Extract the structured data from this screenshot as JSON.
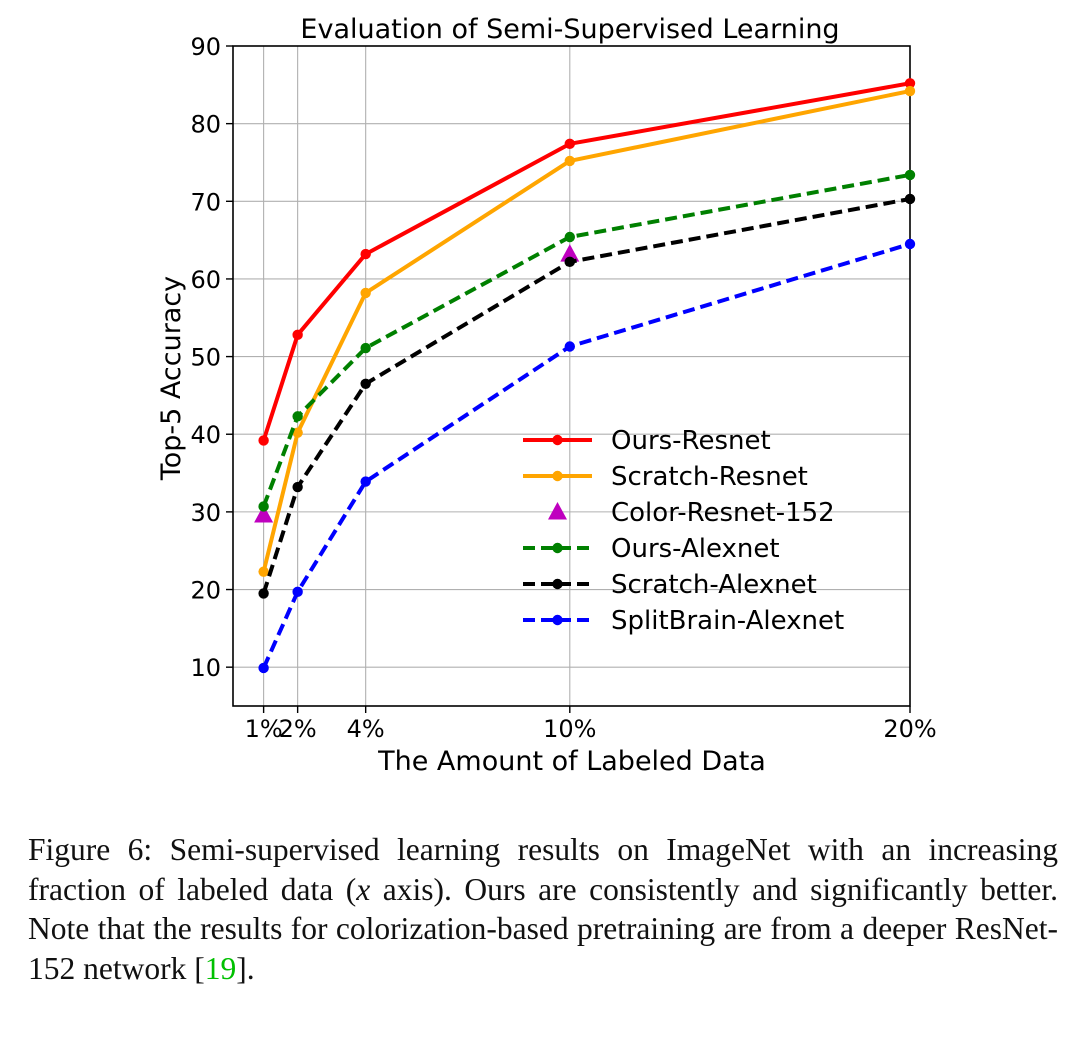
{
  "chart_data": {
    "type": "line",
    "title": "Evaluation of Semi-Supervised Learning",
    "xlabel": "The Amount of Labeled Data",
    "ylabel": "Top-5 Accuracy",
    "x": [
      1,
      2,
      4,
      10,
      20
    ],
    "x_tick_labels": [
      "1%",
      "2%",
      "4%",
      "10%",
      "20%"
    ],
    "xlim": [
      0.1,
      20
    ],
    "ylim": [
      5,
      90
    ],
    "y_ticks": [
      10,
      20,
      30,
      40,
      50,
      60,
      70,
      80,
      90
    ],
    "grid": true,
    "legend_position": "lower-right",
    "series": [
      {
        "name": "Ours-Resnet",
        "color": "#ff0000",
        "style": "solid",
        "marker": "circle",
        "x": [
          1,
          2,
          4,
          10,
          20
        ],
        "values": [
          39.2,
          52.8,
          63.2,
          77.4,
          85.2
        ]
      },
      {
        "name": "Scratch-Resnet",
        "color": "#ffa500",
        "style": "solid",
        "marker": "circle",
        "x": [
          1,
          2,
          4,
          10,
          20
        ],
        "values": [
          22.3,
          40.2,
          58.2,
          75.2,
          84.2
        ]
      },
      {
        "name": "Color-Resnet-152",
        "color": "#bf00bf",
        "style": "none",
        "marker": "triangle",
        "x": [
          1,
          10
        ],
        "values": [
          29.6,
          63.2
        ]
      },
      {
        "name": "Ours-Alexnet",
        "color": "#008000",
        "style": "dashed",
        "marker": "circle",
        "x": [
          1,
          2,
          4,
          10,
          20
        ],
        "values": [
          30.7,
          42.3,
          51.1,
          65.4,
          73.4
        ]
      },
      {
        "name": "Scratch-Alexnet",
        "color": "#000000",
        "style": "dashed",
        "marker": "circle",
        "x": [
          1,
          2,
          4,
          10,
          20
        ],
        "values": [
          19.5,
          33.2,
          46.5,
          62.2,
          70.3
        ]
      },
      {
        "name": "SplitBrain-Alexnet",
        "color": "#0000ff",
        "style": "dashed",
        "marker": "circle",
        "x": [
          1,
          2,
          4,
          10,
          20
        ],
        "values": [
          9.9,
          19.7,
          33.9,
          51.3,
          64.5
        ]
      }
    ]
  },
  "caption": {
    "before_ref": "Figure 6: Semi-supervised learning results on ImageNet with an increasing fraction of labeled data (",
    "math": "x",
    "middle": " axis). Ours are consistently and significantly better. Note that the results for colorization-based pretraining are from a deeper ResNet-152 network [",
    "ref": "19",
    "after_ref": "]."
  }
}
